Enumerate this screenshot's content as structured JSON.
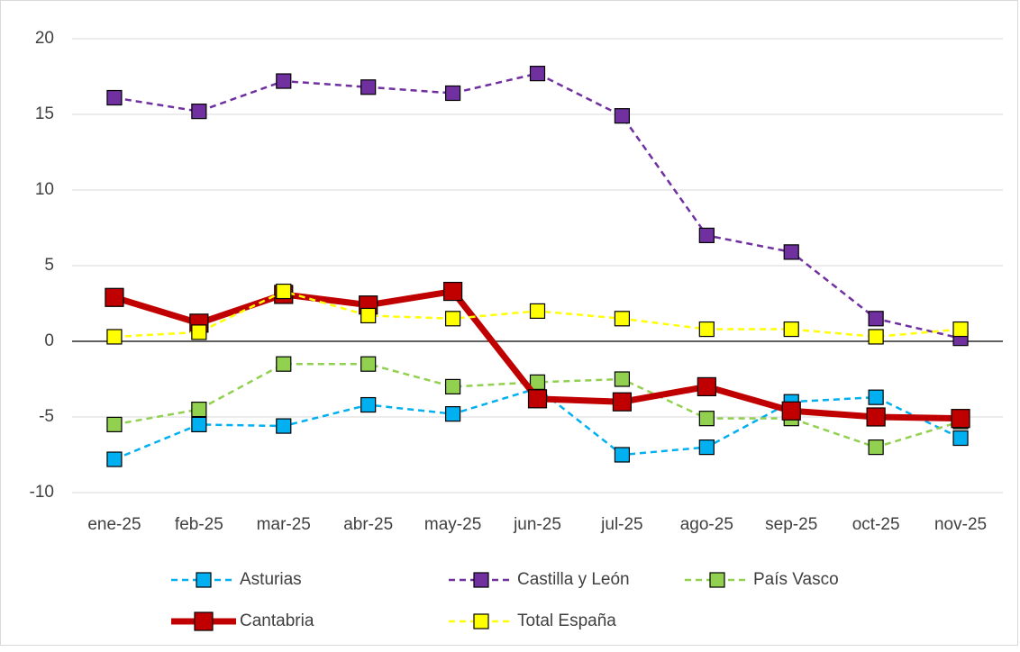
{
  "chart_data": {
    "type": "line",
    "categories": [
      "ene-25",
      "feb-25",
      "mar-25",
      "abr-25",
      "may-25",
      "jun-25",
      "jul-25",
      "ago-25",
      "sep-25",
      "oct-25",
      "nov-25"
    ],
    "series": [
      {
        "name": "Asturias",
        "color": "#00b0f0",
        "dashed": true,
        "values": [
          -7.8,
          -5.5,
          -5.6,
          -4.2,
          -4.8,
          -3.1,
          -7.5,
          -7.0,
          -4.0,
          -3.7,
          -6.4
        ]
      },
      {
        "name": "Castilla y León",
        "color": "#7030a0",
        "dashed": true,
        "values": [
          16.1,
          15.2,
          17.2,
          16.8,
          16.4,
          17.7,
          14.9,
          7.0,
          5.9,
          1.5,
          0.2
        ]
      },
      {
        "name": "País Vasco",
        "color": "#92d050",
        "dashed": true,
        "values": [
          -5.5,
          -4.5,
          -1.5,
          -1.5,
          -3.0,
          -2.7,
          -2.5,
          -5.1,
          -5.1,
          -7.0,
          -5.3
        ]
      },
      {
        "name": "Cantabria",
        "color": "#c00000",
        "dashed": false,
        "values": [
          2.9,
          1.2,
          3.1,
          2.4,
          3.3,
          -3.8,
          -4.0,
          -3.0,
          -4.6,
          -5.0,
          -5.1
        ]
      },
      {
        "name": "Total España",
        "color": "#ffff00",
        "dashed": true,
        "values": [
          0.3,
          0.6,
          3.3,
          1.7,
          1.5,
          2.0,
          1.5,
          0.8,
          0.8,
          0.3,
          0.8
        ]
      }
    ],
    "ylim": [
      -12,
      20
    ],
    "yticks": [
      -10,
      -5,
      0,
      5,
      10,
      15,
      20
    ],
    "grid": true,
    "legend": "bottom"
  }
}
